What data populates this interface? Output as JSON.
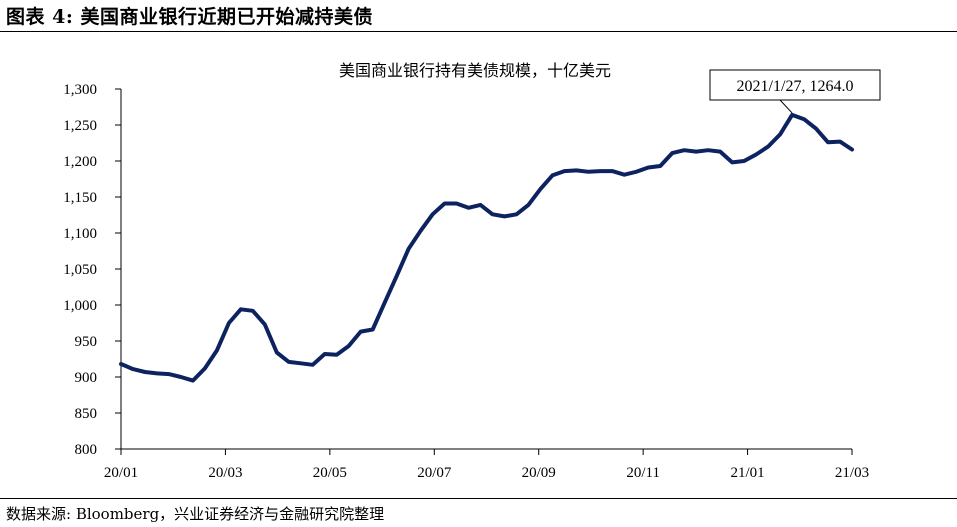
{
  "figure": {
    "title": "图表 4:  美国商业银行近期已开始减持美债",
    "source": "数据来源: Bloomberg，兴业证券经济与金融研究院整理"
  },
  "chart_data": {
    "type": "line",
    "title": "美国商业银行持有美债规模，十亿美元",
    "xlabel": "",
    "ylabel": "",
    "ylim": [
      800,
      1300
    ],
    "yticks": [
      800,
      850,
      900,
      950,
      1000,
      1050,
      1100,
      1150,
      1200,
      1250,
      1300
    ],
    "ytick_labels": [
      "800",
      "850",
      "900",
      "950",
      "1,000",
      "1,050",
      "1,100",
      "1,150",
      "1,200",
      "1,250",
      "1,300"
    ],
    "xticks": [
      "20/01",
      "20/03",
      "20/05",
      "20/07",
      "20/09",
      "20/11",
      "21/01",
      "21/03"
    ],
    "grid": false,
    "color": "#0d2360",
    "series": [
      {
        "name": "美国商业银行持有美债规模",
        "values": [
          918,
          911,
          907,
          905,
          904,
          900,
          895,
          912,
          937,
          975,
          994,
          992,
          973,
          934,
          921,
          919,
          917,
          932,
          931,
          943,
          963,
          966,
          1003,
          1040,
          1078,
          1103,
          1126,
          1141,
          1141,
          1135,
          1139,
          1126,
          1123,
          1126,
          1139,
          1161,
          1180,
          1186,
          1187,
          1185,
          1186,
          1186,
          1181,
          1185,
          1191,
          1193,
          1211,
          1215,
          1213,
          1215,
          1213,
          1198,
          1200,
          1209,
          1220,
          1237,
          1264,
          1258,
          1245,
          1226,
          1227,
          1216
        ]
      }
    ],
    "annotation": {
      "text": "2021/1/27, 1264.0",
      "index": 56
    }
  }
}
